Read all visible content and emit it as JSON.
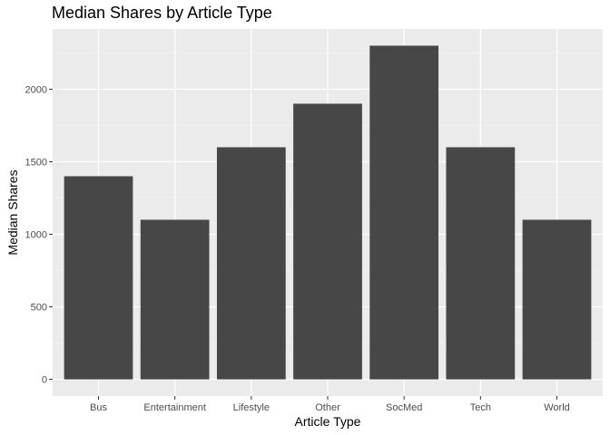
{
  "chart_data": {
    "type": "bar",
    "title": "Median Shares by Article Type",
    "xlabel": "Article Type",
    "ylabel": "Median Shares",
    "categories": [
      "Bus",
      "Entertainment",
      "Lifestyle",
      "Other",
      "SocMed",
      "Tech",
      "World"
    ],
    "values": [
      1400,
      1100,
      1600,
      1900,
      2300,
      1600,
      1100
    ],
    "yticks": [
      0,
      500,
      1000,
      1500,
      2000
    ],
    "ylim": [
      -115,
      2415
    ],
    "grid": true,
    "legend": "none",
    "colors": {
      "bar": "#474747",
      "panel": "#ebebeb",
      "grid_major": "#ffffff",
      "grid_minor": "#f5f5f5",
      "tick": "#333333",
      "tick_label": "#4d4d4d"
    }
  }
}
